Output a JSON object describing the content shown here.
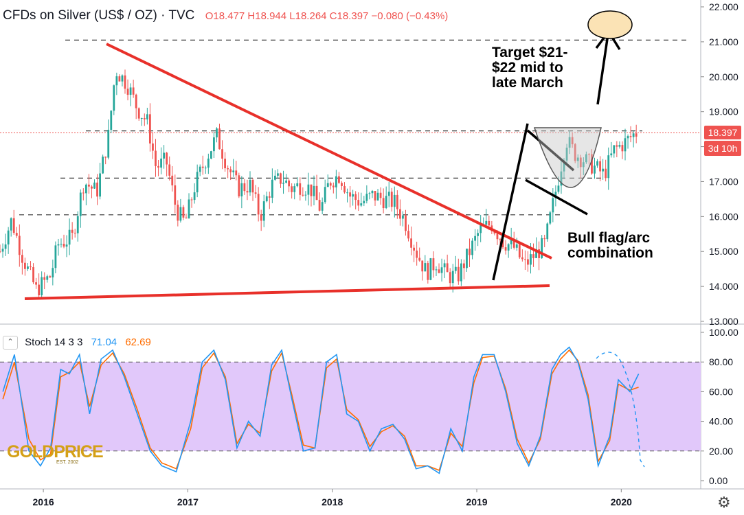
{
  "header": {
    "symbol": "CFDs on Silver (US$ / OZ) · TVC",
    "ohlc": "O18.477 H18.944 L18.264 C18.397 −0.080 (−0.43%)"
  },
  "price_tag": {
    "value": "18.397",
    "countdown": "3d 10h"
  },
  "stoch_header": {
    "toggle_icon": "chevron-icon",
    "label": "Stoch",
    "params": "14 3 3",
    "k_value": "71.04",
    "d_value": "62.69"
  },
  "annotations": {
    "target": "Target $21-\n$22 mid to\nlate March",
    "pattern": "Bull flag/arc\ncombination"
  },
  "logo": {
    "text": "GOLDPRICE",
    "sub": "EST. 2002"
  },
  "colors": {
    "up": "#26a69a",
    "down": "#ef5350",
    "trendline": "#e8302a",
    "stoch_k": "#2196f3",
    "stoch_d": "#ff6d00",
    "stoch_band": "#e1c8fa",
    "target_fill": "#fbe3b5"
  },
  "chart_data": [
    {
      "type": "candlestick",
      "title": "CFDs on Silver (US$ / OZ)",
      "x_ticks": [
        "2016",
        "2017",
        "2018",
        "2019",
        "2020"
      ],
      "y_ticks": [
        "13.000",
        "14.000",
        "15.000",
        "16.000",
        "17.000",
        "18.000",
        "19.000",
        "20.000",
        "21.000",
        "22.000"
      ],
      "ylim": [
        13,
        22
      ],
      "xlim": [
        2015.7,
        2020.55
      ],
      "series": [
        {
          "name": "close",
          "points": [
            [
              2015.7,
              15.0
            ],
            [
              2015.78,
              15.9
            ],
            [
              2015.86,
              14.8
            ],
            [
              2015.95,
              13.9
            ],
            [
              2016.05,
              14.3
            ],
            [
              2016.1,
              15.2
            ],
            [
              2016.2,
              15.4
            ],
            [
              2016.28,
              17.0
            ],
            [
              2016.37,
              16.7
            ],
            [
              2016.45,
              18.3
            ],
            [
              2016.5,
              20.2
            ],
            [
              2016.58,
              19.8
            ],
            [
              2016.65,
              19.1
            ],
            [
              2016.72,
              18.7
            ],
            [
              2016.78,
              17.4
            ],
            [
              2016.85,
              17.6
            ],
            [
              2016.92,
              16.2
            ],
            [
              2016.98,
              15.8
            ],
            [
              2017.05,
              16.9
            ],
            [
              2017.12,
              17.6
            ],
            [
              2017.2,
              18.3
            ],
            [
              2017.27,
              17.5
            ],
            [
              2017.35,
              16.8
            ],
            [
              2017.43,
              16.9
            ],
            [
              2017.5,
              16.0
            ],
            [
              2017.58,
              16.9
            ],
            [
              2017.65,
              17.1
            ],
            [
              2017.72,
              16.8
            ],
            [
              2017.78,
              16.9
            ],
            [
              2017.85,
              16.8
            ],
            [
              2017.92,
              16.2
            ],
            [
              2017.98,
              17.0
            ],
            [
              2018.05,
              17.2
            ],
            [
              2018.12,
              16.6
            ],
            [
              2018.2,
              16.4
            ],
            [
              2018.28,
              16.6
            ],
            [
              2018.36,
              16.5
            ],
            [
              2018.43,
              16.4
            ],
            [
              2018.5,
              15.9
            ],
            [
              2018.58,
              15.0
            ],
            [
              2018.65,
              14.4
            ],
            [
              2018.72,
              14.7
            ],
            [
              2018.8,
              14.3
            ],
            [
              2018.87,
              14.3
            ],
            [
              2018.95,
              15.0
            ],
            [
              2019.02,
              15.6
            ],
            [
              2019.1,
              15.8
            ],
            [
              2019.18,
              15.3
            ],
            [
              2019.26,
              15.1
            ],
            [
              2019.33,
              14.6
            ],
            [
              2019.4,
              14.9
            ],
            [
              2019.47,
              15.2
            ],
            [
              2019.55,
              16.8
            ],
            [
              2019.62,
              18.2
            ],
            [
              2019.68,
              17.8
            ],
            [
              2019.75,
              17.6
            ],
            [
              2019.82,
              17.4
            ],
            [
              2019.88,
              17.2
            ],
            [
              2019.95,
              17.9
            ],
            [
              2020.02,
              18.1
            ],
            [
              2020.1,
              18.4
            ]
          ]
        }
      ],
      "annotations": [
        "Target $21-$22 mid to late March",
        "Bull flag/arc combination"
      ]
    },
    {
      "type": "line",
      "title": "Stoch 14 3 3",
      "y_ticks": [
        "0.00",
        "20.00",
        "40.00",
        "60.00",
        "80.00",
        "100.00"
      ],
      "ylim": [
        0,
        100
      ],
      "series": [
        {
          "name": "%K",
          "values": [
            [
              2015.72,
              60
            ],
            [
              2015.8,
              85
            ],
            [
              2015.9,
              20
            ],
            [
              2015.98,
              10
            ],
            [
              2016.05,
              22
            ],
            [
              2016.12,
              75
            ],
            [
              2016.18,
              72
            ],
            [
              2016.25,
              85
            ],
            [
              2016.32,
              45
            ],
            [
              2016.4,
              82
            ],
            [
              2016.48,
              88
            ],
            [
              2016.56,
              70
            ],
            [
              2016.65,
              45
            ],
            [
              2016.74,
              20
            ],
            [
              2016.82,
              10
            ],
            [
              2016.92,
              6
            ],
            [
              2017.02,
              40
            ],
            [
              2017.1,
              80
            ],
            [
              2017.18,
              88
            ],
            [
              2017.26,
              68
            ],
            [
              2017.34,
              22
            ],
            [
              2017.42,
              40
            ],
            [
              2017.5,
              30
            ],
            [
              2017.58,
              78
            ],
            [
              2017.65,
              88
            ],
            [
              2017.72,
              55
            ],
            [
              2017.8,
              20
            ],
            [
              2017.88,
              22
            ],
            [
              2017.96,
              80
            ],
            [
              2018.03,
              85
            ],
            [
              2018.1,
              45
            ],
            [
              2018.18,
              40
            ],
            [
              2018.26,
              20
            ],
            [
              2018.34,
              35
            ],
            [
              2018.42,
              38
            ],
            [
              2018.5,
              28
            ],
            [
              2018.58,
              8
            ],
            [
              2018.66,
              10
            ],
            [
              2018.74,
              5
            ],
            [
              2018.82,
              35
            ],
            [
              2018.9,
              20
            ],
            [
              2018.98,
              70
            ],
            [
              2019.04,
              85
            ],
            [
              2019.12,
              85
            ],
            [
              2019.2,
              60
            ],
            [
              2019.28,
              25
            ],
            [
              2019.36,
              10
            ],
            [
              2019.44,
              30
            ],
            [
              2019.52,
              75
            ],
            [
              2019.58,
              85
            ],
            [
              2019.64,
              90
            ],
            [
              2019.7,
              80
            ],
            [
              2019.77,
              55
            ],
            [
              2019.84,
              10
            ],
            [
              2019.92,
              30
            ],
            [
              2019.98,
              68
            ],
            [
              2020.06,
              60
            ],
            [
              2020.12,
              72
            ]
          ]
        },
        {
          "name": "%D",
          "values": [
            [
              2015.72,
              55
            ],
            [
              2015.8,
              80
            ],
            [
              2015.9,
              28
            ],
            [
              2015.98,
              14
            ],
            [
              2016.05,
              18
            ],
            [
              2016.12,
              70
            ],
            [
              2016.18,
              73
            ],
            [
              2016.25,
              80
            ],
            [
              2016.32,
              50
            ],
            [
              2016.4,
              78
            ],
            [
              2016.48,
              86
            ],
            [
              2016.56,
              72
            ],
            [
              2016.65,
              48
            ],
            [
              2016.74,
              22
            ],
            [
              2016.82,
              12
            ],
            [
              2016.92,
              8
            ],
            [
              2017.02,
              35
            ],
            [
              2017.1,
              76
            ],
            [
              2017.18,
              86
            ],
            [
              2017.26,
              70
            ],
            [
              2017.34,
              25
            ],
            [
              2017.42,
              38
            ],
            [
              2017.5,
              32
            ],
            [
              2017.58,
              74
            ],
            [
              2017.65,
              86
            ],
            [
              2017.72,
              58
            ],
            [
              2017.8,
              24
            ],
            [
              2017.88,
              22
            ],
            [
              2017.96,
              76
            ],
            [
              2018.03,
              82
            ],
            [
              2018.1,
              48
            ],
            [
              2018.18,
              41
            ],
            [
              2018.26,
              23
            ],
            [
              2018.34,
              33
            ],
            [
              2018.42,
              37
            ],
            [
              2018.5,
              30
            ],
            [
              2018.58,
              10
            ],
            [
              2018.66,
              10
            ],
            [
              2018.74,
              7
            ],
            [
              2018.82,
              32
            ],
            [
              2018.9,
              23
            ],
            [
              2018.98,
              66
            ],
            [
              2019.04,
              83
            ],
            [
              2019.12,
              84
            ],
            [
              2019.2,
              62
            ],
            [
              2019.28,
              28
            ],
            [
              2019.36,
              12
            ],
            [
              2019.44,
              28
            ],
            [
              2019.52,
              72
            ],
            [
              2019.58,
              82
            ],
            [
              2019.64,
              88
            ],
            [
              2019.7,
              81
            ],
            [
              2019.77,
              58
            ],
            [
              2019.84,
              13
            ],
            [
              2019.92,
              27
            ],
            [
              2019.98,
              65
            ],
            [
              2020.06,
              61
            ],
            [
              2020.12,
              63
            ]
          ]
        }
      ]
    }
  ]
}
